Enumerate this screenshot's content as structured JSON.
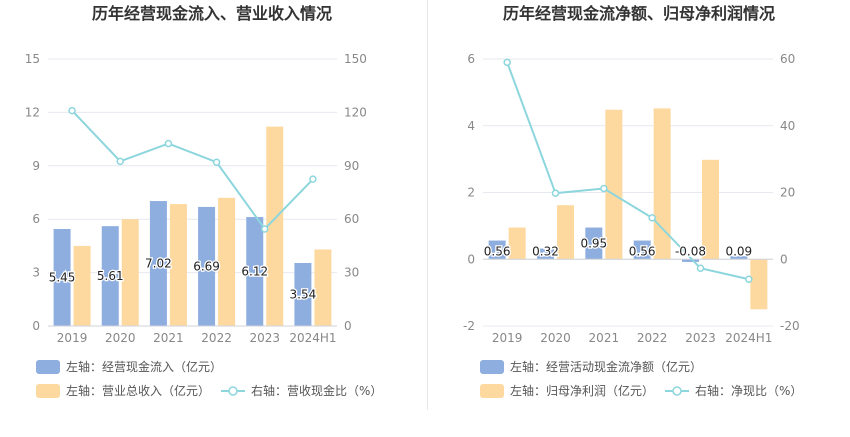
{
  "chart_data": [
    {
      "type": "bar",
      "title": "历年经营现金流入、营业收入情况",
      "categories": [
        "2019",
        "2020",
        "2021",
        "2022",
        "2023",
        "2024H1"
      ],
      "left_axis": {
        "ticks": [
          "0",
          "3",
          "6",
          "9",
          "12",
          "15"
        ],
        "min": 0,
        "max": 15
      },
      "right_axis": {
        "ticks": [
          "0",
          "30",
          "60",
          "90",
          "120",
          "150"
        ],
        "min": 0,
        "max": 150
      },
      "series": [
        {
          "name": "左轴：经营现金流入（亿元）",
          "type": "bar",
          "axis": "left",
          "color": "#8eaee0",
          "values": [
            5.45,
            5.61,
            7.02,
            6.69,
            6.12,
            3.54
          ],
          "labels": [
            "5.45",
            "5.61",
            "7.02",
            "6.69",
            "6.12",
            "3.54"
          ]
        },
        {
          "name": "左轴：营业总收入（亿元）",
          "type": "bar",
          "axis": "left",
          "color": "#fdd9a0",
          "values": [
            4.5,
            6.0,
            6.85,
            7.2,
            11.2,
            4.3
          ]
        },
        {
          "name": "右轴：营收现金比（%）",
          "type": "line",
          "axis": "right",
          "color": "#8dd6dd",
          "values": [
            121,
            92.5,
            102.5,
            92,
            54.5,
            82.5
          ]
        }
      ],
      "legend": [
        [
          {
            "series": 0,
            "label": "左轴：经营现金流入（亿元）"
          }
        ],
        [
          {
            "series": 1,
            "label": "左轴：营业总收入（亿元）"
          },
          {
            "series": 2,
            "label": "右轴：营收现金比（%）"
          }
        ]
      ]
    },
    {
      "type": "bar",
      "title": "历年经营现金流净额、归母净利润情况",
      "categories": [
        "2019",
        "2020",
        "2021",
        "2022",
        "2023",
        "2024H1"
      ],
      "left_axis": {
        "ticks": [
          "-2",
          "0",
          "2",
          "4",
          "6"
        ],
        "min": -2,
        "max": 6
      },
      "right_axis": {
        "ticks": [
          "-20",
          "0",
          "20",
          "40",
          "60"
        ],
        "min": -20,
        "max": 60
      },
      "series": [
        {
          "name": "左轴：经营活动现金流净额（亿元）",
          "type": "bar",
          "axis": "left",
          "color": "#8eaee0",
          "values": [
            0.56,
            0.32,
            0.95,
            0.56,
            -0.08,
            0.09
          ],
          "labels": [
            "0.56",
            "0.32",
            "0.95",
            "0.56",
            "-0.08",
            "0.09"
          ]
        },
        {
          "name": "左轴：归母净利润（亿元）",
          "type": "bar",
          "axis": "left",
          "color": "#fdd9a0",
          "values": [
            0.95,
            1.62,
            4.48,
            4.52,
            2.98,
            -1.5
          ]
        },
        {
          "name": "右轴：净现比（%）",
          "type": "line",
          "axis": "right",
          "color": "#8dd6dd",
          "values": [
            59,
            19.8,
            21.2,
            12.4,
            -2.7,
            -6
          ]
        }
      ],
      "legend": [
        [
          {
            "series": 0,
            "label": "左轴：经营活动现金流净额（亿元）"
          }
        ],
        [
          {
            "series": 1,
            "label": "左轴：归母净利润（亿元）"
          },
          {
            "series": 2,
            "label": "右轴：净现比（%）"
          }
        ]
      ]
    }
  ]
}
